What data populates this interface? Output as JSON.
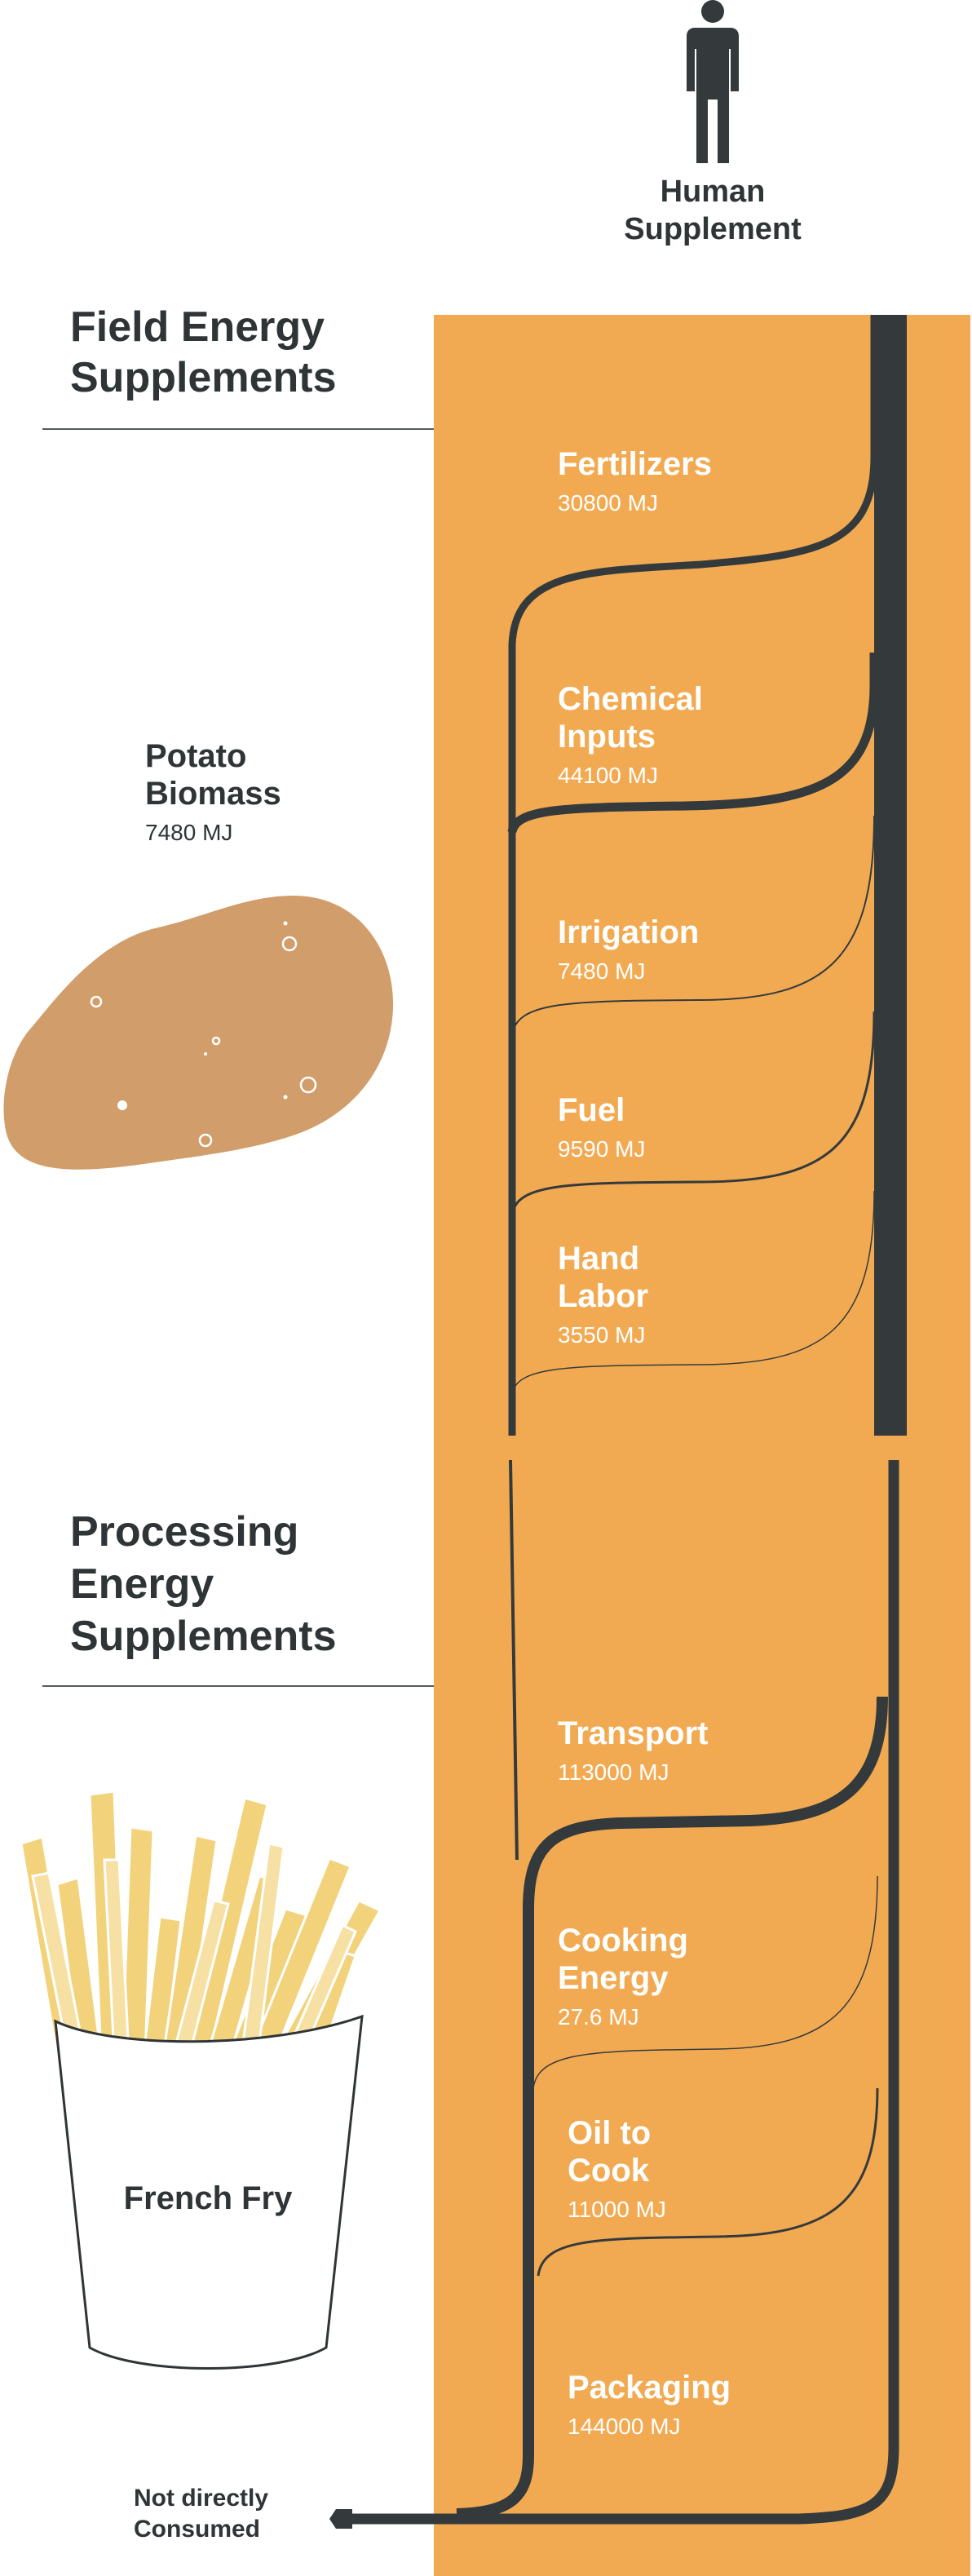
{
  "human": {
    "label_line1": "Human",
    "label_line2": "Supplement",
    "icon": "person-icon"
  },
  "sections": {
    "field": {
      "title_line1": "Field Energy",
      "title_line2": "Supplements"
    },
    "processing": {
      "title_line1": "Processing",
      "title_line2": "Energy",
      "title_line3": "Supplements"
    }
  },
  "potato": {
    "name_line1": "Potato",
    "name_line2": "Biomass",
    "value": "7480 MJ",
    "icon": "potato-icon"
  },
  "french_fry": {
    "label": "French Fry",
    "icon": "french-fries-icon"
  },
  "footer": {
    "line1": "Not directly",
    "line2": "Consumed"
  },
  "field_inputs": [
    {
      "name_line1": "Fertilizers",
      "name_line2": "",
      "value": "30800 MJ",
      "mj": 30800
    },
    {
      "name_line1": "Chemical",
      "name_line2": "Inputs",
      "value": "44100 MJ",
      "mj": 44100
    },
    {
      "name_line1": "Irrigation",
      "name_line2": "",
      "value": "7480 MJ",
      "mj": 7480
    },
    {
      "name_line1": "Fuel",
      "name_line2": "",
      "value": "9590 MJ",
      "mj": 9590
    },
    {
      "name_line1": "Hand",
      "name_line2": "Labor",
      "value": "3550 MJ",
      "mj": 3550
    }
  ],
  "processing_inputs": [
    {
      "name_line1": "Transport",
      "name_line2": "",
      "value": "113000 MJ",
      "mj": 113000
    },
    {
      "name_line1": "Cooking",
      "name_line2": "Energy",
      "value": "27.6 MJ",
      "mj": 27.6
    },
    {
      "name_line1": "Oil to",
      "name_line2": "Cook",
      "value": "11000 MJ",
      "mj": 11000
    },
    {
      "name_line1": "Packaging",
      "name_line2": "",
      "value": "144000 MJ",
      "mj": 144000
    }
  ],
  "colors": {
    "band": "#f2aa52",
    "flow": "#343a3c",
    "text_dark": "#2f3537",
    "potato": "#d19e6b",
    "fry_yellow": "#f2d27a",
    "fry_light": "#f7e0a3"
  }
}
